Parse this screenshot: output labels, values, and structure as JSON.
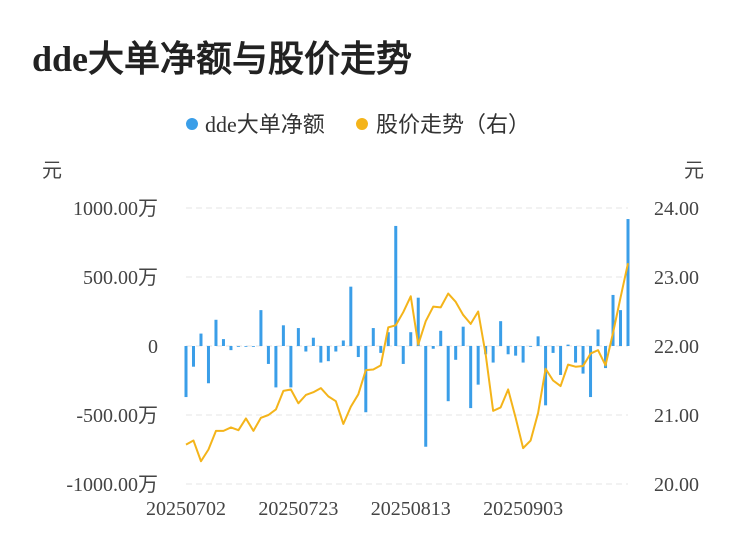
{
  "title": "dde大单净额与股价走势",
  "colors": {
    "bar": "#3a9ee8",
    "line": "#f4b41a",
    "grid": "#e6e6e6",
    "axis_text": "#444444"
  },
  "chart_data": {
    "type": "bar+line",
    "legend": [
      "dde大单净额",
      "股价走势（右）"
    ],
    "legend_placement": "top-center",
    "y_left": {
      "unit_label": "元",
      "ticks": [
        "1000.00万",
        "500.00万",
        "0",
        "-500.00万",
        "-1000.00万"
      ],
      "range": [
        -1000,
        1000
      ],
      "unit": "万元"
    },
    "y_right": {
      "unit_label": "元",
      "ticks": [
        "24.00",
        "23.00",
        "22.00",
        "21.00",
        "20.00"
      ],
      "range": [
        20,
        24
      ]
    },
    "x_tick_labels": [
      "20250702",
      "20250723",
      "20250813",
      "20250903"
    ],
    "x_tick_indices": [
      0,
      15,
      30,
      45
    ],
    "grid": true,
    "series": [
      {
        "name": "dde大单净额",
        "type": "bar",
        "values": [
          -370,
          -150,
          90,
          -270,
          190,
          50,
          -30,
          0,
          0,
          0,
          260,
          -130,
          -300,
          150,
          -300,
          130,
          -40,
          60,
          -120,
          -110,
          -40,
          40,
          430,
          -80,
          -480,
          130,
          -50,
          100,
          870,
          -130,
          100,
          350,
          -730,
          -20,
          110,
          -400,
          -100,
          140,
          -450,
          -280,
          -60,
          -120,
          180,
          -60,
          -70,
          -120,
          0,
          70,
          -430,
          -50,
          -210,
          10,
          -120,
          -200,
          -370,
          120,
          -160,
          370,
          260,
          920
        ]
      },
      {
        "name": "股价走势（右）",
        "type": "line",
        "values": [
          20.57,
          20.63,
          20.33,
          20.5,
          20.77,
          20.77,
          20.82,
          20.78,
          20.95,
          20.77,
          20.96,
          21.0,
          21.08,
          21.35,
          21.37,
          21.17,
          21.29,
          21.33,
          21.39,
          21.27,
          21.2,
          20.87,
          21.12,
          21.3,
          21.65,
          21.66,
          21.72,
          22.27,
          22.3,
          22.49,
          22.72,
          22.02,
          22.36,
          22.57,
          22.56,
          22.76,
          22.64,
          22.45,
          22.32,
          22.5,
          21.88,
          21.06,
          21.11,
          21.37,
          20.96,
          20.52,
          20.63,
          21.03,
          21.67,
          21.5,
          21.42,
          21.73,
          21.7,
          21.71,
          21.89,
          21.94,
          21.72,
          22.19,
          22.7,
          23.2
        ]
      }
    ]
  }
}
